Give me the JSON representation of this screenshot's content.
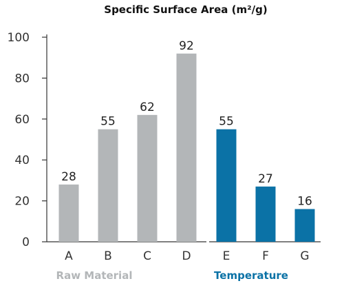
{
  "chart_data": {
    "type": "bar",
    "title": "Specific Surface Area (m²/g)",
    "categories": [
      "A",
      "B",
      "C",
      "D",
      "E",
      "F",
      "G"
    ],
    "values": [
      28,
      55,
      62,
      92,
      55,
      27,
      16
    ],
    "ylim": [
      0,
      100
    ],
    "yticks": [
      0,
      20,
      40,
      60,
      80,
      100
    ],
    "grid": false,
    "groups": [
      {
        "label": "Raw Material",
        "categories": [
          "A",
          "B",
          "C",
          "D"
        ],
        "color": "#b3b6b8",
        "label_color": "#b3b6b8"
      },
      {
        "label": "Temperature",
        "categories": [
          "E",
          "F",
          "G"
        ],
        "color": "#0b72a6",
        "label_color": "#0b72a6"
      }
    ]
  }
}
